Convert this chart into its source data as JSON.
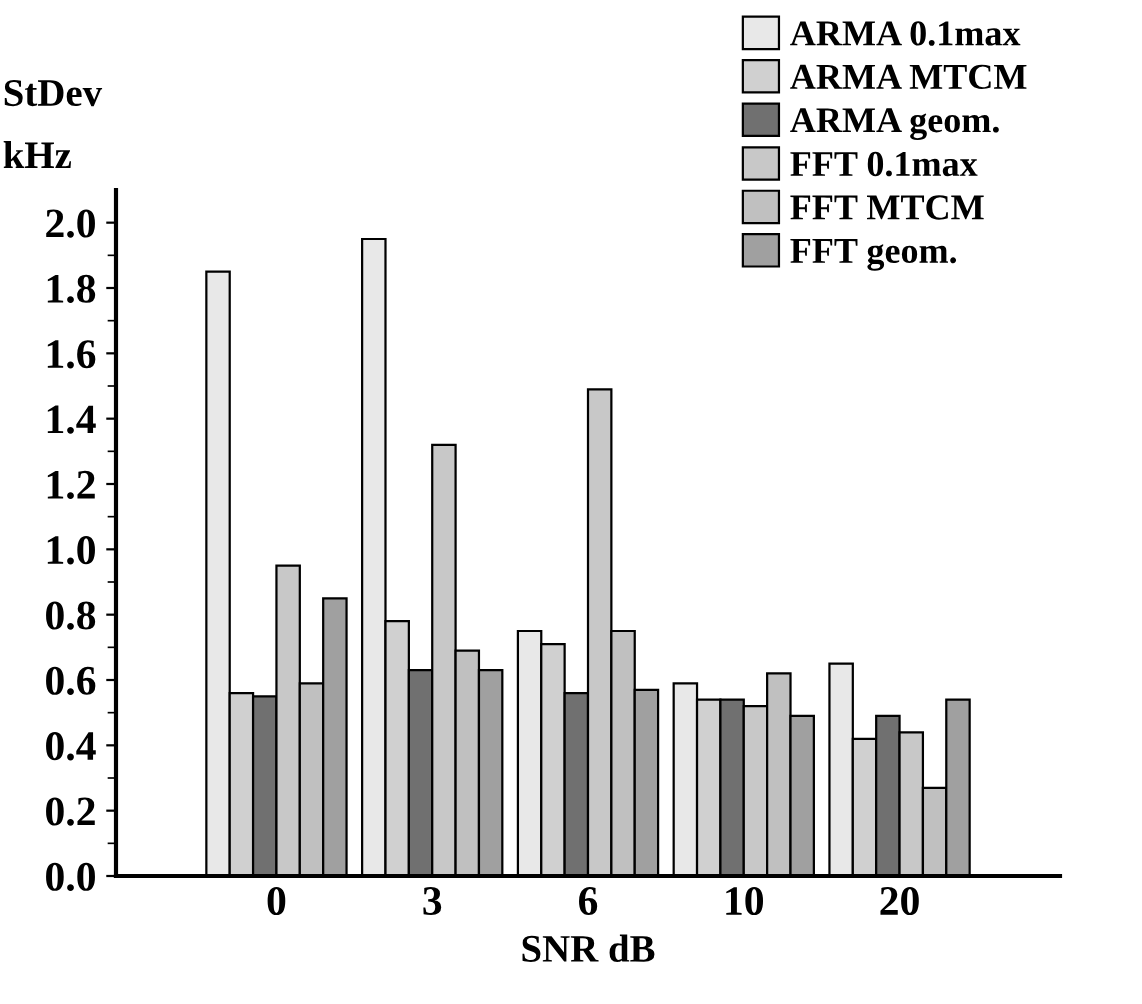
{
  "chart_data": {
    "type": "bar",
    "xlabel": "SNR dB",
    "ylabel": "StDev\nkHz",
    "categories": [
      "0",
      "3",
      "6",
      "10",
      "20"
    ],
    "series": [
      {
        "name": "ARMA 0.1max",
        "color": "#e8e8e8",
        "values": [
          1.85,
          1.95,
          0.75,
          0.59,
          0.65
        ]
      },
      {
        "name": "ARMA MTCM",
        "color": "#d0d0d0",
        "values": [
          0.56,
          0.78,
          0.71,
          0.54,
          0.42
        ]
      },
      {
        "name": "ARMA geom.",
        "color": "#707070",
        "values": [
          0.55,
          0.63,
          0.56,
          0.54,
          0.49
        ]
      },
      {
        "name": "FFT 0.1max",
        "color": "#c8c8c8",
        "values": [
          0.95,
          1.32,
          1.49,
          0.52,
          0.44
        ]
      },
      {
        "name": "FFT MTCM",
        "color": "#c0c0c0",
        "values": [
          0.59,
          0.69,
          0.75,
          0.62,
          0.27
        ]
      },
      {
        "name": "FFT geom.",
        "color": "#a0a0a0",
        "values": [
          0.85,
          0.63,
          0.57,
          0.49,
          0.54
        ]
      }
    ],
    "ylim": [
      0,
      2.1
    ],
    "yticks": [
      {
        "value": 0,
        "label": "0.0"
      },
      {
        "value": 0.2,
        "label": "0.2"
      },
      {
        "value": 0.4,
        "label": "0.4"
      },
      {
        "value": 0.6,
        "label": "0.6"
      },
      {
        "value": 0.8,
        "label": "0.8"
      },
      {
        "value": 1.0,
        "label": "1.0"
      },
      {
        "value": 1.2,
        "label": "1.2"
      },
      {
        "value": 1.4,
        "label": "1.4"
      },
      {
        "value": 1.6,
        "label": "1.6"
      },
      {
        "value": 1.8,
        "label": "1.8"
      },
      {
        "value": 2.0,
        "label": "2.0"
      }
    ],
    "legend": "top right",
    "grid": false
  }
}
